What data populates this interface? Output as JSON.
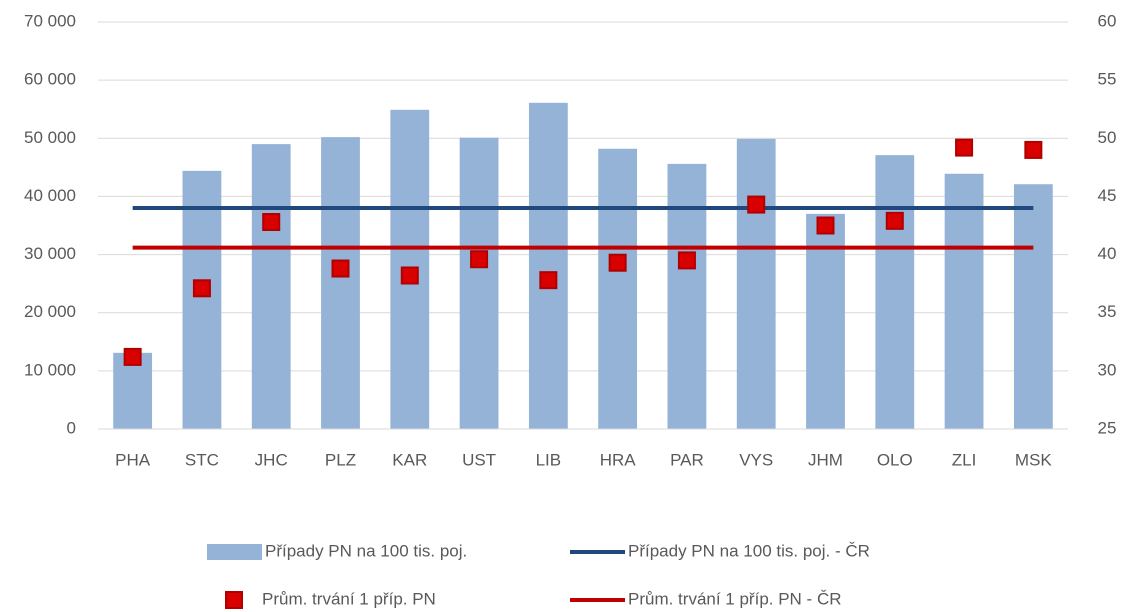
{
  "chart_data": {
    "type": "bar",
    "categories": [
      "PHA",
      "STC",
      "JHC",
      "PLZ",
      "KAR",
      "UST",
      "LIB",
      "HRA",
      "PAR",
      "VYS",
      "JHM",
      "OLO",
      "ZLI",
      "MSK"
    ],
    "series": [
      {
        "name": "Případy PN na 100 tis. poj.",
        "type": "bar",
        "color": "#95b3d7",
        "values": [
          13100,
          44400,
          49000,
          50200,
          54900,
          50100,
          56100,
          48200,
          45600,
          49900,
          37000,
          47100,
          43900,
          42100
        ]
      },
      {
        "name": "Případy PN na 100 tis. poj. - ČR",
        "type": "line",
        "color": "#1f497d",
        "values": [
          38000,
          38000,
          38000,
          38000,
          38000,
          38000,
          38000,
          38000,
          38000,
          38000,
          38000,
          38000,
          38000,
          38000
        ]
      },
      {
        "name": "Prům. trvání 1 příp. PN",
        "type": "scatter",
        "color": "#d90000",
        "axis": "y2",
        "values": [
          31.2,
          37.1,
          42.8,
          38.8,
          38.2,
          39.6,
          37.8,
          39.3,
          39.5,
          44.3,
          42.5,
          42.9,
          49.2,
          49.0
        ]
      },
      {
        "name": "Prům. trvání 1 příp. PN - ČR",
        "type": "line",
        "color": "#c00000",
        "axis": "y2",
        "values": [
          40.6,
          40.6,
          40.6,
          40.6,
          40.6,
          40.6,
          40.6,
          40.6,
          40.6,
          40.6,
          40.6,
          40.6,
          40.6,
          40.6
        ]
      }
    ],
    "ylim": [
      0,
      70000
    ],
    "yticks": [
      0,
      {
        "value": 10000,
        "label": "10 000"
      },
      {
        "value": 20000,
        "label": "20 000"
      },
      {
        "value": 30000,
        "label": "30 000"
      },
      {
        "value": 40000,
        "label": "40 000"
      },
      {
        "value": 50000,
        "label": "50 000"
      },
      {
        "value": 60000,
        "label": "60 000"
      },
      {
        "value": 70000,
        "label": "70 000"
      }
    ],
    "y2lim": [
      25,
      60
    ],
    "y2ticks": [
      25,
      30,
      35,
      40,
      45,
      50,
      55,
      60
    ],
    "grid": true,
    "legend": "bottom"
  }
}
